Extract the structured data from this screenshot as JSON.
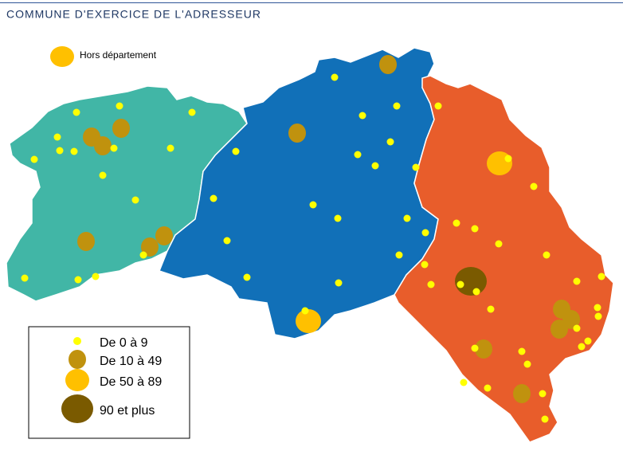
{
  "title": "COMMUNE D'EXERCICE DE L'ADRESSEUR",
  "outside_label": "Hors département",
  "legend": {
    "items": [
      "De 0 à 9",
      "De 10 à 49",
      "De 50 à 89",
      "90 et plus"
    ]
  }
}
